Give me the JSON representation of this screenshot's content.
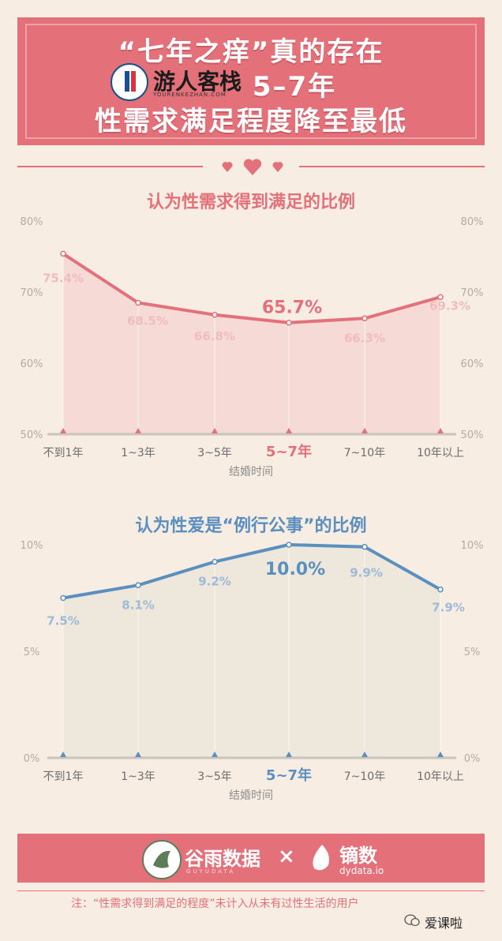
{
  "header": {
    "line1": "“七年之痒”真的存在",
    "line2": "5–7年",
    "line3": "性需求满足程度降至最低"
  },
  "watermark": {
    "text": "游人客栈",
    "sub": "YOURENKEZHAN.COM"
  },
  "colors": {
    "banner": "#e4707a",
    "chart1_line": "#e4707a",
    "chart1_fill": "#f6d6d4",
    "chart2_line": "#5b8fbf",
    "chart2_fill": "#ece5da",
    "background": "#f7ede3"
  },
  "chart_data": [
    {
      "type": "area",
      "title": "认为性需求得到满足的比例",
      "xlabel": "结婚时间",
      "ylabel": "",
      "categories": [
        "不到1年",
        "1~3年",
        "3~5年",
        "5~7年",
        "7~10年",
        "10年以上"
      ],
      "highlight_category": "5~7年",
      "series": [
        {
          "values": [
            75.4,
            68.5,
            66.8,
            65.7,
            66.3,
            69.3
          ]
        }
      ],
      "data_labels": [
        "75.4%",
        "68.5%",
        "66.8%",
        "65.7%",
        "66.3%",
        "69.3%"
      ],
      "ylim": [
        50,
        80
      ],
      "yticks": [
        "80%",
        "70%",
        "60%",
        "50%"
      ],
      "grid": false
    },
    {
      "type": "area",
      "title": "认为性爱是“例行公事”的比例",
      "xlabel": "结婚时间",
      "ylabel": "",
      "categories": [
        "不到1年",
        "1~3年",
        "3~5年",
        "5~7年",
        "7~10年",
        "10年以上"
      ],
      "highlight_category": "5~7年",
      "series": [
        {
          "values": [
            7.5,
            8.1,
            9.2,
            10.0,
            9.9,
            7.9
          ]
        }
      ],
      "data_labels": [
        "7.5%",
        "8.1%",
        "9.2%",
        "10.0%",
        "9.9%",
        "7.9%"
      ],
      "ylim": [
        0,
        10
      ],
      "yticks": [
        "10%",
        "5%",
        "0%"
      ],
      "grid": false
    }
  ],
  "footer": {
    "logo1_text": "谷雨数据",
    "logo1_sub": "GUYUDATA",
    "cross": "×",
    "logo2_text": "镝数",
    "logo2_sub": "dydata.io",
    "note": "注：“性需求得到满足的程度”未计入从未有过性生活的用户",
    "brand": "爱课啦"
  }
}
